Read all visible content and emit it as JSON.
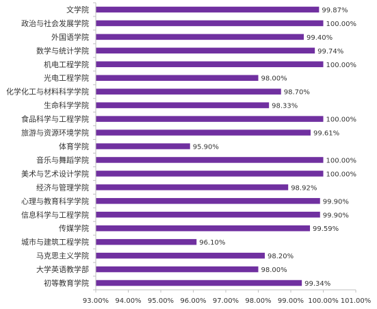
{
  "chart_data": {
    "type": "bar",
    "orientation": "horizontal",
    "categories": [
      "文学院",
      "政治与社会发展学院",
      "外国语学院",
      "数学与统计学院",
      "机电工程学院",
      "光电工程学院",
      "化学化工与材料科学学院",
      "生命科学学院",
      "食品科学与工程学院",
      "旅游与资源环境学院",
      "体育学院",
      "音乐与舞蹈学院",
      "美术与艺术设计学院",
      "经济与管理学院",
      "心理与教育科学学院",
      "信息科学与工程学院",
      "传媒学院",
      "城市与建筑工程学院",
      "马克思主义学院",
      "大学英语教学部",
      "初等教育学院"
    ],
    "values": [
      99.87,
      100.0,
      99.4,
      99.74,
      100.0,
      98.0,
      98.7,
      98.33,
      100.0,
      99.61,
      95.9,
      100.0,
      100.0,
      98.92,
      99.9,
      99.9,
      99.59,
      96.1,
      98.2,
      98.0,
      99.34
    ],
    "value_labels": [
      "99.87%",
      "100.00%",
      "99.40%",
      "99.74%",
      "100.00%",
      "98.00%",
      "98.70%",
      "98.33%",
      "100.00%",
      "99.61%",
      "95.90%",
      "100.00%",
      "100.00%",
      "98.92%",
      "99.90%",
      "99.90%",
      "99.59%",
      "96.10%",
      "98.20%",
      "98.00%",
      "99.34%"
    ],
    "xlim": [
      93,
      101
    ],
    "xticks": [
      93,
      94,
      95,
      96,
      97,
      98,
      99,
      100,
      101
    ],
    "xtick_labels": [
      "93.00%",
      "94.00%",
      "95.00%",
      "96.00%",
      "97.00%",
      "98.00%",
      "99.00%",
      "100.00%",
      "101.00%"
    ],
    "title": "",
    "xlabel": "",
    "ylabel": "",
    "grid": false,
    "bar_color": "#7030a0",
    "axis_color": "#bfbfbf"
  }
}
